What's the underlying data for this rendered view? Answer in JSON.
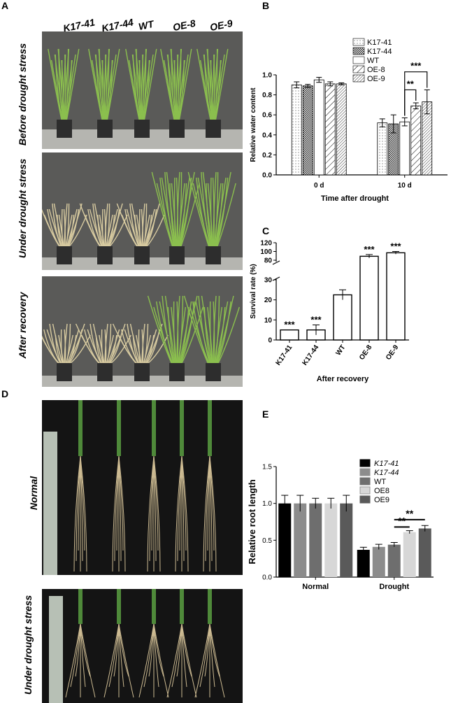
{
  "panels": {
    "a": "A",
    "b": "B",
    "c": "C",
    "d": "D",
    "e": "E"
  },
  "panel_a": {
    "genotypes": [
      "K17-41",
      "K17-44",
      "WT",
      "OE-8",
      "OE-9"
    ],
    "rows": [
      "Before drought stress",
      "Under drought stress",
      "After recovery"
    ]
  },
  "panel_d": {
    "rows": [
      "Normal",
      "Under drought stress"
    ]
  },
  "colors": {
    "photo_bg": "#5a5a58",
    "root_bg": "#141414",
    "plant_green": "#8bbf4e",
    "plant_dry": "#d8cba0"
  },
  "chart_data": [
    {
      "id": "B",
      "type": "bar",
      "categories": [
        "0 d",
        "10 d"
      ],
      "series": [
        {
          "name": "K17-41",
          "pattern": "dots",
          "values": [
            0.9,
            0.52
          ],
          "errors": [
            0.03,
            0.04
          ]
        },
        {
          "name": "K17-44",
          "pattern": "checker",
          "values": [
            0.89,
            0.51
          ],
          "errors": [
            0.015,
            0.09
          ]
        },
        {
          "name": "WT",
          "pattern": "plain",
          "values": [
            0.95,
            0.53
          ],
          "errors": [
            0.025,
            0.04
          ]
        },
        {
          "name": "OE-8",
          "pattern": "hatch-wide",
          "values": [
            0.91,
            0.69
          ],
          "errors": [
            0.02,
            0.03
          ]
        },
        {
          "name": "OE-9",
          "pattern": "hatch-dense",
          "values": [
            0.91,
            0.73
          ],
          "errors": [
            0.01,
            0.12
          ]
        }
      ],
      "xlabel": "Time after drought",
      "ylabel": "Relative water content",
      "ylim": [
        0,
        1.0
      ],
      "yticks": [
        "0.0",
        "0.2",
        "0.4",
        "0.6",
        "0.8",
        "1.0"
      ],
      "annotations": [
        {
          "text": "***",
          "from": "WT",
          "to": "OE-9",
          "category": "10 d"
        },
        {
          "text": "**",
          "from": "WT",
          "to": "OE-8",
          "category": "10 d"
        }
      ],
      "legend": "top-right"
    },
    {
      "id": "C",
      "type": "bar",
      "categories": [
        "K17-41",
        "K17-44",
        "WT",
        "OE-8",
        "OE-9"
      ],
      "values": [
        5,
        5,
        22.5,
        89,
        97
      ],
      "errors": [
        0,
        2.5,
        2.5,
        4,
        3
      ],
      "significance": [
        "***",
        "***",
        "",
        "***",
        "***"
      ],
      "xlabel": "After recovery",
      "ylabel": "Survival rate (%)",
      "axis_break": [
        30,
        80
      ],
      "yticks": [
        "0",
        "10",
        "20",
        "30",
        "80",
        "100",
        "120"
      ]
    },
    {
      "id": "E",
      "type": "bar",
      "categories": [
        "Normal",
        "Drought"
      ],
      "series": [
        {
          "name": "K17-41",
          "italic": true,
          "color": "#000000",
          "values": [
            1.0,
            0.37
          ],
          "errors": [
            0.11,
            0.035
          ]
        },
        {
          "name": "K17-44",
          "italic": true,
          "color": "#8c8c8c",
          "values": [
            1.0,
            0.41
          ],
          "errors": [
            0.11,
            0.035
          ]
        },
        {
          "name": "WT",
          "italic": false,
          "color": "#6e6e6e",
          "values": [
            1.0,
            0.44
          ],
          "errors": [
            0.07,
            0.03
          ]
        },
        {
          "name": "OE8",
          "italic": false,
          "color": "#d7d7d7",
          "values": [
            1.0,
            0.61
          ],
          "errors": [
            0.07,
            0.02
          ]
        },
        {
          "name": "OE9",
          "italic": false,
          "color": "#5a5a5a",
          "values": [
            1.0,
            0.66
          ],
          "errors": [
            0.11,
            0.04
          ]
        }
      ],
      "ylabel": "Relative root length",
      "ylim": [
        0,
        1.5
      ],
      "yticks": [
        "0.0",
        "0.5",
        "1.0",
        "1.5"
      ],
      "annotations": [
        {
          "text": "**",
          "from": "WT",
          "to": "OE9",
          "category": "Drought"
        },
        {
          "text": "**",
          "from": "WT",
          "to": "OE8",
          "category": "Drought"
        }
      ],
      "legend": "top-right"
    }
  ]
}
